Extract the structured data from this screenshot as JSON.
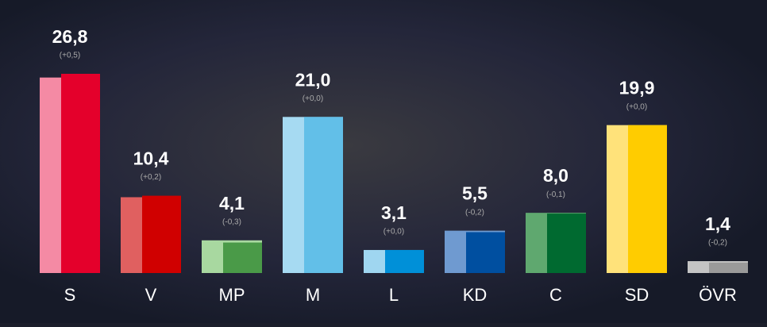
{
  "chart_data": {
    "type": "bar",
    "categories": [
      "S",
      "V",
      "MP",
      "M",
      "L",
      "KD",
      "C",
      "SD",
      "ÖVR"
    ],
    "values": [
      26.8,
      10.4,
      4.1,
      21.0,
      3.1,
      5.5,
      8.0,
      19.9,
      1.4
    ],
    "value_labels": [
      "26,8",
      "10,4",
      "4,1",
      "21,0",
      "3,1",
      "5,5",
      "8,0",
      "19,9",
      "1,4"
    ],
    "previous_values": [
      26.3,
      10.2,
      4.4,
      21.0,
      3.1,
      5.7,
      8.1,
      19.9,
      1.6
    ],
    "changes": [
      0.5,
      0.2,
      -0.3,
      0.0,
      0.0,
      -0.2,
      -0.1,
      0.0,
      -0.2
    ],
    "change_labels": [
      "(+0,5)",
      "(+0,2)",
      "(-0,3)",
      "(+0,0)",
      "(+0,0)",
      "(-0,2)",
      "(-0,1)",
      "(+0,0)",
      "(-0,2)"
    ],
    "colors": [
      "#e4002b",
      "#d00000",
      "#4a9a48",
      "#62bfe8",
      "#0090d8",
      "#004fa0",
      "#006a30",
      "#ffcc00",
      "#9a9a9a"
    ],
    "previous_colors": [
      "#f48aa4",
      "#e06060",
      "#a8d8a0",
      "#a6daf2",
      "#9fd6f0",
      "#6f9ad0",
      "#5fa86f",
      "#ffe27a",
      "#c4c4c4"
    ]
  }
}
